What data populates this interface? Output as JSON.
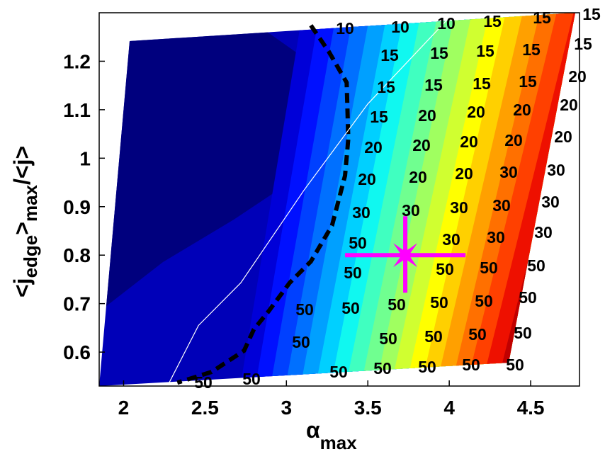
{
  "chart_data": {
    "type": "contour",
    "xlabel": {
      "main": "α",
      "sub": "max"
    },
    "ylabel": {
      "a": "<j",
      "sub1": "edge",
      "b": ">",
      "sub2": "max",
      "c": "/<j>"
    },
    "xlim": [
      1.85,
      4.8
    ],
    "ylim": [
      0.53,
      1.3
    ],
    "xticks": [
      2,
      2.5,
      3,
      3.5,
      4,
      4.5
    ],
    "yticks": [
      0.6,
      0.7,
      0.8,
      0.9,
      1,
      1.1,
      1.2
    ],
    "series": [
      {
        "color": "#000000",
        "style": "dashed",
        "x": [
          3.15,
          3.26,
          3.37,
          3.38,
          3.36,
          3.28,
          3.15,
          3.02,
          2.89,
          2.8,
          2.74,
          2.54,
          2.33
        ],
        "values": [
          1.274,
          1.22,
          1.156,
          1.04,
          0.964,
          0.861,
          0.787,
          0.743,
          0.684,
          0.647,
          0.603,
          0.559,
          0.537
        ]
      },
      {
        "color": "#ffffff",
        "style": "solid",
        "x": [
          2.28,
          2.46,
          2.72,
          3.11,
          3.5,
          4.0
        ],
        "values": [
          0.537,
          0.655,
          0.743,
          0.935,
          1.112,
          1.29
        ]
      }
    ],
    "marker": {
      "x": 3.73,
      "y": 0.8,
      "color": "#ff00ff"
    },
    "contour_labels": [
      10,
      10,
      10,
      15,
      15,
      15,
      15,
      15,
      15,
      15,
      15,
      15,
      15,
      15,
      15,
      20,
      15,
      20,
      20,
      20,
      20,
      20,
      20,
      20,
      20,
      20,
      20,
      20,
      20,
      30,
      30,
      30,
      30,
      30,
      30,
      30,
      50,
      30,
      30,
      30,
      50,
      50,
      50,
      50,
      50,
      50,
      50,
      50,
      50,
      50,
      50,
      50,
      50,
      50,
      50,
      50,
      50,
      50,
      50,
      50,
      50,
      50
    ]
  }
}
